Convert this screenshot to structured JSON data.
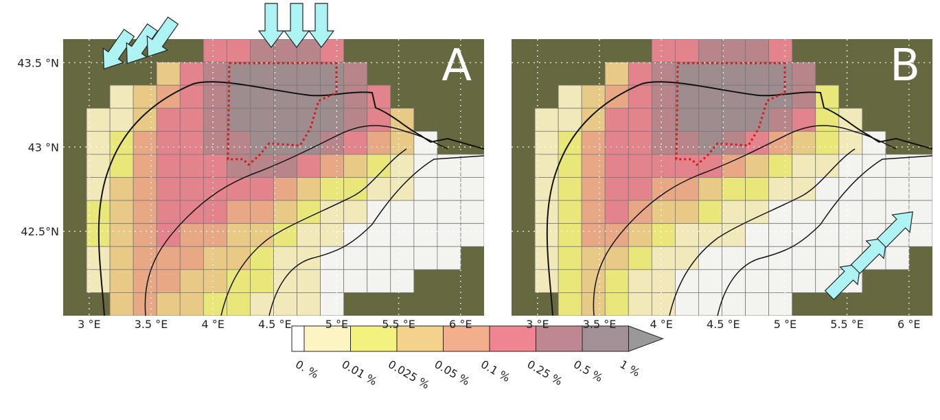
{
  "panels": [
    {
      "label": "A",
      "cells": [
        [
          null,
          null,
          null,
          null,
          null,
          null,
          5,
          5,
          6,
          6,
          6,
          5,
          null,
          null,
          null,
          null,
          null,
          null
        ],
        [
          null,
          null,
          null,
          null,
          3,
          5,
          6,
          7,
          7,
          7,
          7,
          7,
          6,
          null,
          null,
          null,
          null,
          null
        ],
        [
          null,
          null,
          1,
          3,
          4,
          5,
          6,
          7,
          7,
          7,
          7,
          7,
          6,
          5,
          null,
          null,
          null,
          null
        ],
        [
          null,
          1,
          1,
          3,
          5,
          5,
          6,
          7,
          7,
          7,
          7,
          7,
          6,
          5,
          3,
          null,
          null,
          null
        ],
        [
          null,
          1,
          2,
          4,
          5,
          5,
          6,
          6,
          7,
          7,
          7,
          6,
          5,
          4,
          3,
          0,
          null,
          null
        ],
        [
          null,
          1,
          2,
          4,
          5,
          5,
          5,
          6,
          6,
          6,
          5,
          4,
          3,
          2,
          1,
          0,
          0,
          0
        ],
        [
          null,
          1,
          3,
          4,
          5,
          5,
          5,
          5,
          5,
          4,
          3,
          2,
          2,
          1,
          1,
          0,
          0,
          0
        ],
        [
          null,
          2,
          3,
          4,
          5,
          5,
          5,
          4,
          4,
          3,
          2,
          1,
          1,
          0,
          0,
          0,
          0,
          0
        ],
        [
          null,
          2,
          3,
          4,
          5,
          4,
          4,
          3,
          3,
          2,
          1,
          1,
          0,
          0,
          0,
          0,
          0,
          0
        ],
        [
          null,
          1,
          3,
          4,
          4,
          4,
          3,
          3,
          2,
          1,
          1,
          0,
          0,
          0,
          0,
          0,
          0,
          null
        ],
        [
          null,
          1,
          3,
          4,
          4,
          3,
          3,
          2,
          2,
          1,
          1,
          0,
          0,
          0,
          0,
          null,
          null,
          null
        ],
        [
          null,
          null,
          3,
          4,
          3,
          3,
          2,
          2,
          1,
          1,
          1,
          0,
          null,
          null,
          null,
          null,
          null,
          null
        ]
      ]
    },
    {
      "label": "B",
      "cells": [
        [
          null,
          null,
          null,
          null,
          null,
          null,
          5,
          5,
          6,
          6,
          6,
          5,
          null,
          null,
          null,
          null,
          null,
          null
        ],
        [
          null,
          null,
          null,
          null,
          3,
          5,
          6,
          7,
          7,
          7,
          7,
          7,
          6,
          null,
          null,
          null,
          null,
          null
        ],
        [
          null,
          null,
          1,
          3,
          4,
          5,
          6,
          7,
          7,
          7,
          7,
          7,
          6,
          2,
          null,
          null,
          null,
          null
        ],
        [
          null,
          1,
          1,
          3,
          5,
          5,
          6,
          7,
          7,
          7,
          7,
          6,
          5,
          2,
          1,
          null,
          null,
          null
        ],
        [
          null,
          1,
          2,
          4,
          5,
          5,
          6,
          6,
          7,
          6,
          5,
          4,
          3,
          2,
          1,
          0,
          null,
          null
        ],
        [
          null,
          1,
          2,
          4,
          5,
          5,
          5,
          5,
          5,
          4,
          3,
          2,
          1,
          1,
          0,
          0,
          0,
          0
        ],
        [
          null,
          1,
          2,
          4,
          5,
          5,
          4,
          4,
          3,
          2,
          2,
          1,
          1,
          0,
          0,
          0,
          0,
          0
        ],
        [
          null,
          1,
          2,
          4,
          5,
          4,
          3,
          3,
          2,
          1,
          1,
          0,
          0,
          0,
          0,
          0,
          0,
          0
        ],
        [
          null,
          1,
          2,
          4,
          4,
          3,
          2,
          1,
          1,
          1,
          0,
          0,
          0,
          0,
          0,
          0,
          0,
          0
        ],
        [
          null,
          1,
          2,
          3,
          3,
          2,
          1,
          1,
          0,
          0,
          0,
          0,
          0,
          0,
          0,
          0,
          0,
          null
        ],
        [
          null,
          1,
          2,
          3,
          2,
          1,
          1,
          0,
          0,
          0,
          0,
          0,
          0,
          0,
          0,
          null,
          null,
          null
        ],
        [
          null,
          null,
          2,
          3,
          2,
          1,
          1,
          0,
          0,
          0,
          0,
          0,
          null,
          null,
          null,
          null,
          null,
          null
        ]
      ]
    }
  ],
  "xlim": [
    2.79,
    6.19
  ],
  "ylim": [
    42.0,
    43.64
  ],
  "lon_ticks": [
    {
      "value": 3,
      "label": "3 °E"
    },
    {
      "value": 3.5,
      "label": "3.5 °E"
    },
    {
      "value": 4,
      "label": "4 °E"
    },
    {
      "value": 4.5,
      "label": "4.5 °E"
    },
    {
      "value": 5,
      "label": "5 °E"
    },
    {
      "value": 5.5,
      "label": "5.5 °E"
    },
    {
      "value": 6,
      "label": "6 °E"
    }
  ],
  "lat_ticks": [
    {
      "value": 43.5,
      "label": "43.5 °N"
    },
    {
      "value": 43,
      "label": "43 °N"
    },
    {
      "value": 42.5,
      "label": "42.5°N"
    }
  ],
  "legend": {
    "labels": [
      "0. %",
      "0.01 %",
      "0.025 %",
      "0.05 %",
      "0.1 %",
      "0.25 %",
      "0.5 %",
      "1 %"
    ],
    "colors": [
      "#ffffff",
      "#fdf4c4",
      "#f4f27e",
      "#f3d38c",
      "#f3ae8c",
      "#ee8591",
      "#bf8890",
      "#a38f96",
      "#999999"
    ]
  }
}
